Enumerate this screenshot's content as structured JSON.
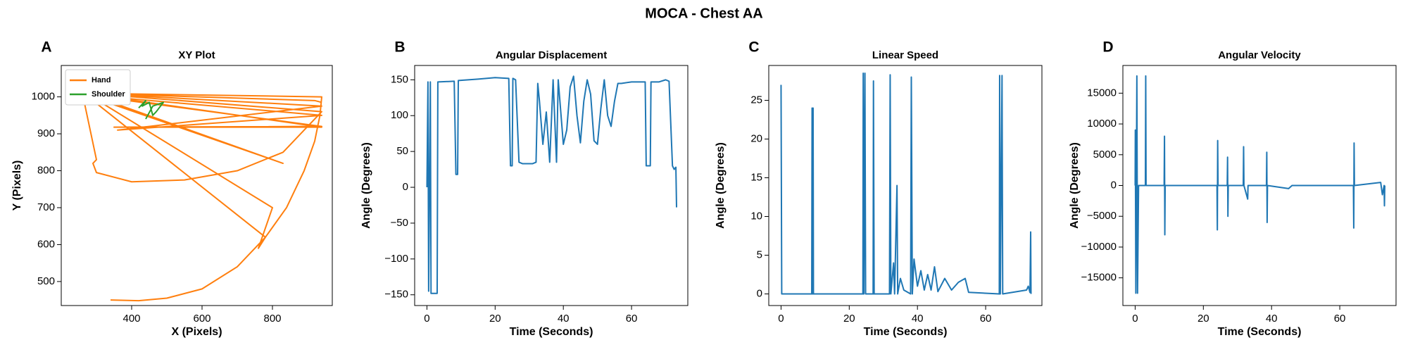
{
  "title": "MOCA - Chest AA",
  "chart_data": [
    {
      "type": "line",
      "panel_label": "A",
      "title": "XY Plot",
      "xlabel": "X (Pixels)",
      "ylabel": "Y (Pixels)",
      "xlim": [
        200,
        970
      ],
      "ylim": [
        435,
        1085
      ],
      "xticks": [
        400,
        600,
        800
      ],
      "yticks": [
        500,
        600,
        700,
        800,
        900,
        1000
      ],
      "legend": "upper left",
      "series": [
        {
          "name": "Hand",
          "color": "#ff7f0e",
          "x": [
            340,
            420,
            500,
            600,
            700,
            780,
            840,
            890,
            920,
            935,
            940,
            260,
            300,
            290,
            300,
            400,
            550,
            700,
            830,
            900,
            940,
            270,
            830,
            270,
            780,
            760,
            800,
            270,
            940,
            360,
            940,
            270,
            940,
            350,
            940,
            260,
            920,
            940
          ],
          "values": [
            450,
            448,
            455,
            480,
            540,
            620,
            700,
            800,
            880,
            950,
            1000,
            1010,
            830,
            820,
            795,
            770,
            775,
            800,
            850,
            920,
            960,
            1010,
            820,
            1005,
            620,
            590,
            700,
            1010,
            975,
            910,
            950,
            1005,
            920,
            918,
            918,
            1010,
            990,
            985
          ]
        },
        {
          "name": "Shoulder",
          "color": "#2ca02c",
          "x": [
            420,
            440,
            430,
            450,
            460,
            470,
            490,
            460,
            440
          ],
          "values": [
            970,
            990,
            975,
            985,
            950,
            960,
            985,
            975,
            940
          ]
        }
      ]
    },
    {
      "type": "line",
      "panel_label": "B",
      "title": "Angular Displacement",
      "xlabel": "Time (Seconds)",
      "ylabel": "Angle (Degrees)",
      "xlim": [
        -3.6,
        76.5
      ],
      "ylim": [
        -165,
        170
      ],
      "xticks": [
        0,
        20,
        40,
        60
      ],
      "yticks": [
        {
          "value": -150,
          "label": "−150"
        },
        {
          "value": -100,
          "label": "−100"
        },
        {
          "value": -50,
          "label": "−50"
        },
        0,
        50,
        100,
        150
      ],
      "color": "#1f77b4",
      "x": [
        0,
        0.3,
        0.5,
        1,
        1.2,
        3,
        3.2,
        8,
        8.5,
        9,
        9.2,
        15,
        20,
        24,
        24.5,
        25,
        25.2,
        26,
        27,
        28,
        31,
        32,
        32.5,
        33,
        34,
        35,
        36,
        37,
        38,
        38.5,
        40,
        41,
        42,
        43,
        44,
        45,
        46,
        47,
        48,
        49,
        50,
        51,
        52,
        53,
        54,
        55,
        56,
        57,
        60,
        64,
        64.3,
        65.5,
        65.7,
        68,
        70,
        71,
        72,
        72.5,
        73,
        73.2
      ],
      "values": [
        0,
        147,
        -145,
        147,
        -148,
        -148,
        147,
        148,
        18,
        18,
        149,
        151,
        153,
        152,
        30,
        30,
        152,
        150,
        35,
        33,
        33,
        35,
        145,
        120,
        60,
        105,
        35,
        150,
        35,
        150,
        60,
        80,
        140,
        155,
        100,
        62,
        120,
        150,
        130,
        65,
        60,
        110,
        150,
        100,
        85,
        120,
        145,
        145,
        147,
        147,
        30,
        30,
        147,
        147,
        150,
        148,
        30,
        25,
        28,
        -28
      ]
    },
    {
      "type": "line",
      "panel_label": "C",
      "title": "Linear Speed",
      "xlabel": "Time (Seconds)",
      "ylabel": "Angle (Degrees)",
      "xlim": [
        -3.6,
        76.5
      ],
      "ylim": [
        -1.5,
        29.5
      ],
      "xticks": [
        0,
        20,
        40,
        60
      ],
      "yticks": [
        0,
        5,
        10,
        15,
        20,
        25
      ],
      "color": "#1f77b4",
      "x": [
        0,
        0.2,
        9,
        9.1,
        9.2,
        9.4,
        9.5,
        24,
        24.1,
        24.3,
        24.6,
        24.8,
        27,
        27.1,
        27.3,
        31.8,
        32,
        32.2,
        33,
        33.3,
        34,
        34.2,
        35,
        36,
        38,
        38.2,
        38.5,
        39,
        40,
        41,
        42,
        43,
        44,
        45,
        46,
        48,
        50,
        52,
        54,
        55,
        64,
        64.1,
        64.3,
        64.8,
        65,
        72,
        72.5,
        73,
        73.2,
        73.3
      ],
      "values": [
        27,
        0,
        0,
        24,
        0,
        24,
        0,
        0,
        28.5,
        0,
        28.5,
        0,
        0,
        27.5,
        0,
        0,
        28.3,
        0,
        4,
        0,
        14,
        0,
        2,
        0.5,
        0,
        28,
        0,
        4.5,
        1,
        3,
        0.5,
        2.5,
        0.5,
        3.5,
        0.3,
        2,
        0.5,
        1.5,
        2,
        0.2,
        0,
        28.2,
        0,
        28.2,
        0,
        0.5,
        1,
        0.2,
        8,
        0
      ]
    },
    {
      "type": "line",
      "panel_label": "D",
      "title": "Angular Velocity",
      "xlabel": "Time (Seconds)",
      "ylabel": "Angle (Degrees)",
      "xlim": [
        -3.6,
        76.5
      ],
      "ylim": [
        -19500,
        19500
      ],
      "xticks": [
        0,
        20,
        40,
        60
      ],
      "yticks": [
        {
          "value": -15000,
          "label": "−15000"
        },
        {
          "value": -10000,
          "label": "−10000"
        },
        {
          "value": -5000,
          "label": "−5000"
        },
        0,
        5000,
        10000,
        15000
      ],
      "color": "#1f77b4",
      "x": [
        0,
        0.05,
        0.2,
        0.5,
        0.7,
        1,
        3,
        3.1,
        3.2,
        8.5,
        8.6,
        8.7,
        8.8,
        24,
        24.1,
        24.2,
        24.3,
        27,
        27.1,
        27.2,
        27.3,
        31.7,
        31.8,
        31.9,
        33,
        33.1,
        38.5,
        38.6,
        38.7,
        38.8,
        45,
        46,
        64,
        64.1,
        64.2,
        64.3,
        72,
        72.5,
        73,
        73.1,
        73.2
      ],
      "values": [
        0,
        9000,
        -17500,
        17800,
        -17500,
        0,
        0,
        17800,
        0,
        0,
        8000,
        -8000,
        0,
        0,
        -7200,
        7300,
        0,
        0,
        4600,
        -5000,
        0,
        0,
        6300,
        0,
        -2200,
        0,
        0,
        5400,
        -6000,
        0,
        -500,
        0,
        0,
        -6900,
        6900,
        0,
        500,
        -1500,
        0,
        -3300,
        0
      ]
    }
  ]
}
